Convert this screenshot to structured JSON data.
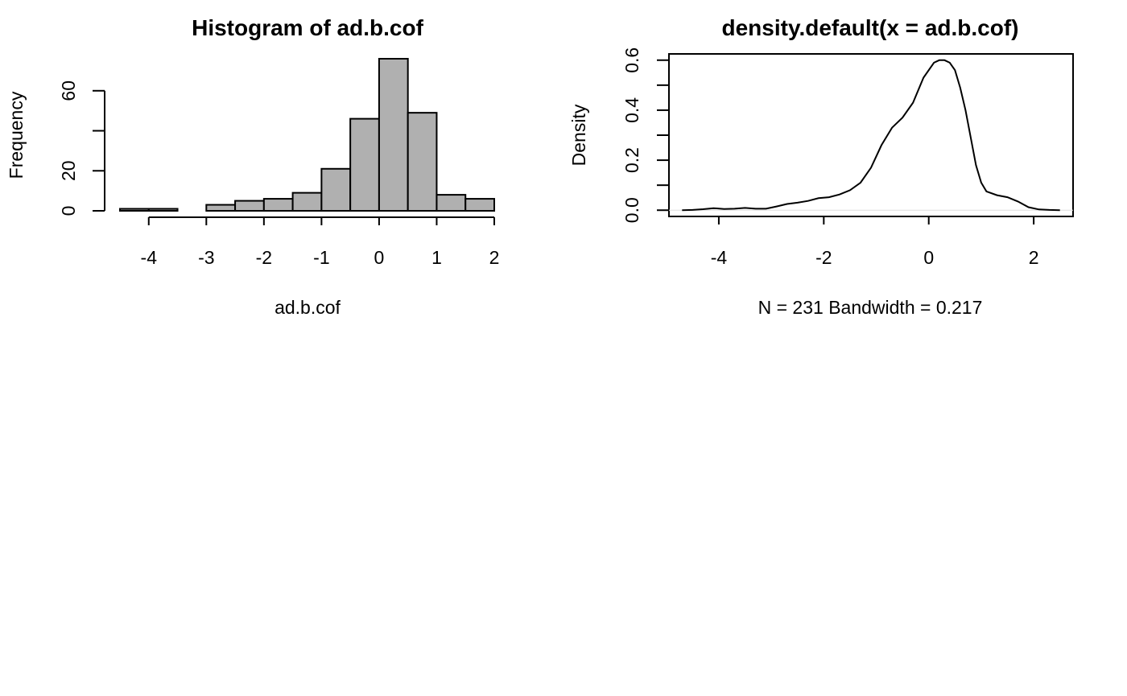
{
  "chart_data": [
    {
      "type": "bar",
      "title": "Histogram of ad.b.cof",
      "xlabel": "ad.b.cof",
      "ylabel": "Frequency",
      "bin_edges": [
        -4.5,
        -4,
        -3.5,
        -3,
        -2.5,
        -2,
        -1.5,
        -1,
        -0.5,
        0,
        0.5,
        1,
        1.5,
        2
      ],
      "values": [
        1,
        1,
        0,
        3,
        5,
        6,
        9,
        21,
        46,
        76,
        49,
        8,
        6
      ],
      "xlim": [
        -4.5,
        2
      ],
      "ylim": [
        0,
        76
      ],
      "xticks": [
        "-4",
        "-3",
        "-2",
        "-1",
        "0",
        "1",
        "2"
      ],
      "yticks": [
        "0",
        "20",
        "60"
      ],
      "bar_fill": "#b0b0b0",
      "grid": false
    },
    {
      "type": "line",
      "title": "density.default(x = ad.b.cof)",
      "xlabel": "N = 231   Bandwidth = 0.217",
      "ylabel": "Density",
      "series": [
        {
          "x": [
            -4.7,
            -4.5,
            -4.3,
            -4.1,
            -3.9,
            -3.7,
            -3.5,
            -3.3,
            -3.1,
            -2.9,
            -2.7,
            -2.5,
            -2.3,
            -2.1,
            -1.9,
            -1.7,
            -1.5,
            -1.3,
            -1.1,
            -0.9,
            -0.7,
            -0.5,
            -0.3,
            -0.1,
            0.1,
            0.2,
            0.3,
            0.4,
            0.5,
            0.6,
            0.7,
            0.8,
            0.9,
            1.0,
            1.1,
            1.3,
            1.5,
            1.7,
            1.9,
            2.1,
            2.3,
            2.5
          ],
          "y": [
            0.0,
            0.001,
            0.004,
            0.008,
            0.005,
            0.006,
            0.009,
            0.006,
            0.006,
            0.015,
            0.025,
            0.03,
            0.037,
            0.048,
            0.052,
            0.063,
            0.08,
            0.11,
            0.17,
            0.26,
            0.33,
            0.37,
            0.43,
            0.53,
            0.59,
            0.6,
            0.6,
            0.59,
            0.56,
            0.49,
            0.4,
            0.29,
            0.18,
            0.11,
            0.075,
            0.06,
            0.052,
            0.035,
            0.012,
            0.003,
            0.001,
            0.0
          ]
        }
      ],
      "xlim": [
        -4.95,
        2.75
      ],
      "ylim": [
        -0.025,
        0.625
      ],
      "xticks": [
        "-4",
        "-2",
        "0",
        "2"
      ],
      "yticks": [
        "0.0",
        "0.2",
        "0.4",
        "0.6"
      ],
      "baseline": 0,
      "grid": false
    }
  ]
}
